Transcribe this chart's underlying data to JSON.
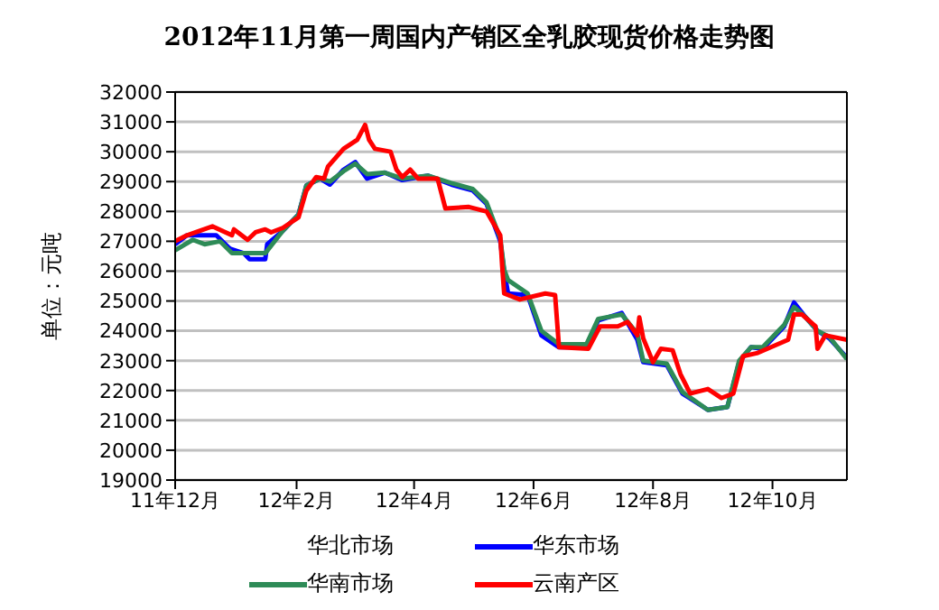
{
  "chart_data": {
    "type": "line",
    "title": "2012年11月第一周国内产销区全乳胶现货价格走势图",
    "ylabel": "单位：元吨",
    "xlim": [
      "2011-12-01",
      "2012-11-08"
    ],
    "xticks": [
      {
        "value": "2011-12-01",
        "label": "11年12月"
      },
      {
        "value": "2012-02-01",
        "label": "12年2月"
      },
      {
        "value": "2012-04-01",
        "label": "12年4月"
      },
      {
        "value": "2012-06-01",
        "label": "12年6月"
      },
      {
        "value": "2012-08-01",
        "label": "12年8月"
      },
      {
        "value": "2012-10-01",
        "label": "12年10月"
      }
    ],
    "ylim": [
      19000,
      32000
    ],
    "yticks": [
      19000,
      20000,
      21000,
      22000,
      23000,
      24000,
      25000,
      26000,
      27000,
      28000,
      29000,
      30000,
      31000,
      32000
    ],
    "annotations": [
      "华北市场"
    ],
    "grid": "y",
    "legend": "bottom",
    "marker": "none",
    "line_style": "solid",
    "series": [
      {
        "name": "华东市场",
        "color": "#0000ff",
        "x": [
          "2011-12-01",
          "2011-12-07",
          "2011-12-22",
          "2011-12-29",
          "2012-01-05",
          "2012-01-08",
          "2012-01-16",
          "2012-01-17",
          "2012-01-25",
          "2012-02-02",
          "2012-02-06",
          "2012-02-13",
          "2012-02-18",
          "2012-02-25",
          "2012-03-02",
          "2012-03-08",
          "2012-03-17",
          "2012-03-26",
          "2012-04-08",
          "2012-04-20",
          "2012-05-01",
          "2012-05-08",
          "2012-05-15",
          "2012-05-17",
          "2012-05-19",
          "2012-05-29",
          "2012-06-05",
          "2012-06-14",
          "2012-06-28",
          "2012-07-04",
          "2012-07-16",
          "2012-07-24",
          "2012-07-27",
          "2012-08-08",
          "2012-08-16",
          "2012-08-29",
          "2012-09-08",
          "2012-09-14",
          "2012-09-20",
          "2012-09-26",
          "2012-10-07",
          "2012-10-12",
          "2012-10-18",
          "2012-10-24",
          "2012-10-30",
          "2012-11-08"
        ],
        "values": [
          26900,
          27200,
          27200,
          26750,
          26600,
          26400,
          26400,
          26900,
          27350,
          27900,
          28870,
          29100,
          28900,
          29400,
          29650,
          29100,
          29300,
          29050,
          29200,
          28900,
          28700,
          28250,
          27000,
          26000,
          25250,
          25200,
          23850,
          23450,
          23450,
          24350,
          24600,
          23700,
          22950,
          22850,
          21900,
          21350,
          21450,
          22950,
          23450,
          23400,
          24150,
          24950,
          24450,
          24000,
          23750,
          23100
        ]
      },
      {
        "name": "华南市场",
        "color": "#2e8b57",
        "x": [
          "2011-12-01",
          "2011-12-10",
          "2011-12-16",
          "2011-12-24",
          "2011-12-30",
          "2012-01-16",
          "2012-01-25",
          "2012-02-02",
          "2012-02-06",
          "2012-02-13",
          "2012-02-18",
          "2012-02-25",
          "2012-03-02",
          "2012-03-08",
          "2012-03-17",
          "2012-03-26",
          "2012-04-08",
          "2012-04-20",
          "2012-05-01",
          "2012-05-08",
          "2012-05-15",
          "2012-05-17",
          "2012-05-19",
          "2012-05-29",
          "2012-06-05",
          "2012-06-14",
          "2012-06-28",
          "2012-07-04",
          "2012-07-16",
          "2012-07-24",
          "2012-07-27",
          "2012-08-08",
          "2012-08-16",
          "2012-08-29",
          "2012-09-08",
          "2012-09-14",
          "2012-09-20",
          "2012-09-26",
          "2012-10-07",
          "2012-10-12",
          "2012-10-18",
          "2012-10-24",
          "2012-10-30",
          "2012-11-08"
        ],
        "values": [
          26700,
          27050,
          26900,
          27000,
          26600,
          26600,
          27350,
          27900,
          28870,
          29100,
          29000,
          29350,
          29600,
          29250,
          29300,
          29100,
          29200,
          28950,
          28750,
          28300,
          27100,
          26050,
          25700,
          25250,
          24000,
          23550,
          23550,
          24400,
          24550,
          23900,
          23000,
          22900,
          21950,
          21350,
          21450,
          23000,
          23450,
          23450,
          24200,
          24800,
          24450,
          24000,
          23800,
          23050
        ]
      },
      {
        "name": "云南产区",
        "color": "#ff0000",
        "x": [
          "2011-12-01",
          "2011-12-07",
          "2011-12-20",
          "2011-12-30",
          "2011-12-31",
          "2012-01-07",
          "2012-01-11",
          "2012-01-16",
          "2012-01-19",
          "2012-01-25",
          "2012-02-02",
          "2012-02-06",
          "2012-02-11",
          "2012-02-15",
          "2012-02-17",
          "2012-02-25",
          "2012-03-03",
          "2012-03-07",
          "2012-03-09",
          "2012-03-12",
          "2012-03-20",
          "2012-03-23",
          "2012-03-26",
          "2012-03-30",
          "2012-04-03",
          "2012-04-13",
          "2012-04-17",
          "2012-04-29",
          "2012-05-08",
          "2012-05-15",
          "2012-05-16",
          "2012-05-17",
          "2012-05-25",
          "2012-06-07",
          "2012-06-12",
          "2012-06-14",
          "2012-06-29",
          "2012-07-05",
          "2012-07-14",
          "2012-07-19",
          "2012-07-24",
          "2012-07-25",
          "2012-07-27",
          "2012-08-01",
          "2012-08-05",
          "2012-08-11",
          "2012-08-15",
          "2012-08-20",
          "2012-08-29",
          "2012-09-05",
          "2012-09-11",
          "2012-09-16",
          "2012-09-23",
          "2012-10-09",
          "2012-10-12",
          "2012-10-16",
          "2012-10-23",
          "2012-10-24",
          "2012-10-28",
          "2012-11-08"
        ],
        "values": [
          27000,
          27200,
          27500,
          27200,
          27400,
          27050,
          27300,
          27400,
          27300,
          27450,
          27800,
          28700,
          29150,
          29100,
          29500,
          30100,
          30400,
          30900,
          30400,
          30100,
          30000,
          29400,
          29150,
          29400,
          29100,
          29100,
          28100,
          28150,
          28000,
          27200,
          26150,
          25250,
          25050,
          25250,
          25200,
          23450,
          23400,
          24150,
          24150,
          24300,
          23850,
          24450,
          23750,
          22950,
          23400,
          23350,
          22550,
          21900,
          22050,
          21750,
          21900,
          23150,
          23250,
          23700,
          24550,
          24550,
          24150,
          23400,
          23850,
          23700
        ]
      }
    ]
  }
}
